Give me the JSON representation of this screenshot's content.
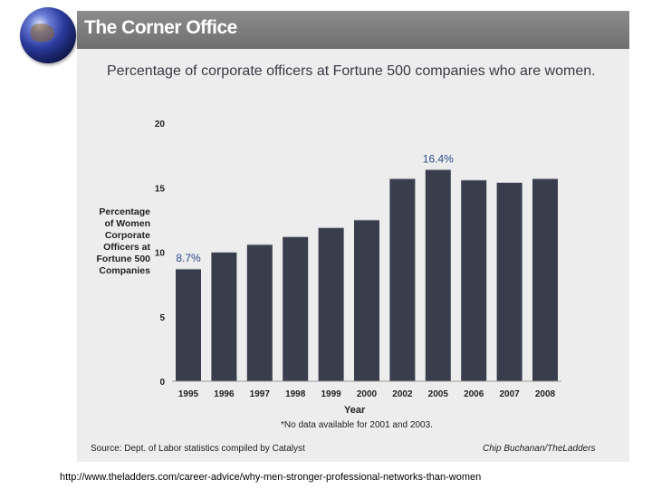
{
  "header": {
    "title": "The Corner Office"
  },
  "icon": "globe-icon",
  "colors": {
    "bar": "#3a3d4c",
    "panel": "#ededed",
    "header": "#7a7a7a",
    "data_label": "#2e4a8e"
  },
  "chart_data": {
    "type": "bar",
    "title": "Percentage of corporate officers at Fortune 500 companies who are women.",
    "xlabel": "Year",
    "ylabel": "Percentage\nof Women\nCorporate\nOfficers at\nFortune 500\nCompanies",
    "categories": [
      "1995",
      "1996",
      "1997",
      "1998",
      "1999",
      "2000",
      "2002",
      "2005",
      "2006",
      "2007",
      "2008"
    ],
    "values": [
      8.7,
      10.0,
      10.6,
      11.2,
      11.9,
      12.5,
      15.7,
      16.4,
      15.6,
      15.4,
      15.7
    ],
    "data_labels": [
      {
        "index": 0,
        "text": "8.7%"
      },
      {
        "index": 7,
        "text": "16.4%"
      }
    ],
    "ylim": [
      0,
      20
    ],
    "yticks": [
      "0",
      "5",
      "10",
      "15",
      "20"
    ],
    "footnote": "*No data available for 2001 and 2003.",
    "source": "Source: Dept. of Labor statistics compiled by Catalyst",
    "credit": "Chip Buchanan/TheLadders"
  },
  "footer": {
    "url": "http://www.theladders.com/career-advice/why-men-stronger-professional-networks-than-women"
  }
}
